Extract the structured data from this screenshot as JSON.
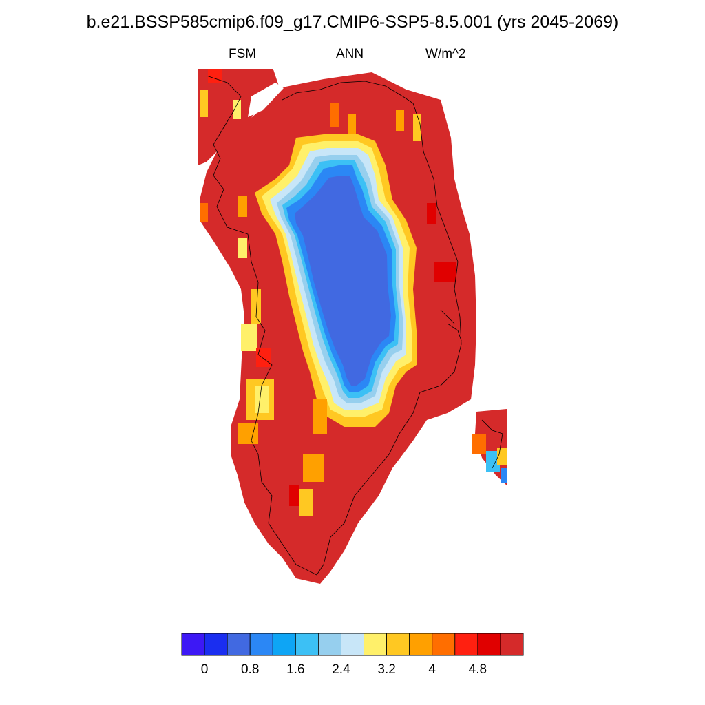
{
  "title": "b.e21.BSSP585cmip6.f09_g17.CMIP6-SSP5-8.5.001 (yrs 2045-2069)",
  "subtitles": {
    "left": "FSM",
    "center": "ANN",
    "right": "W/m^2"
  },
  "colorbar": {
    "colors": [
      "#3d18f5",
      "#1a2ef0",
      "#4169e1",
      "#2b87f5",
      "#0ea5f5",
      "#3cc0f5",
      "#96cfee",
      "#c8e6f8",
      "#fff06a",
      "#ffc822",
      "#ffa000",
      "#ff6e00",
      "#ff2010",
      "#e00000",
      "#d52a2a"
    ],
    "tick_labels": [
      "0",
      "0.8",
      "1.6",
      "2.4",
      "3.2",
      "4",
      "4.8"
    ],
    "bounds": [
      0,
      0.4,
      0.8,
      1.2,
      1.6,
      2.0,
      2.4,
      2.8,
      3.2,
      3.6,
      4.0,
      4.4,
      4.8,
      5.2
    ]
  }
}
